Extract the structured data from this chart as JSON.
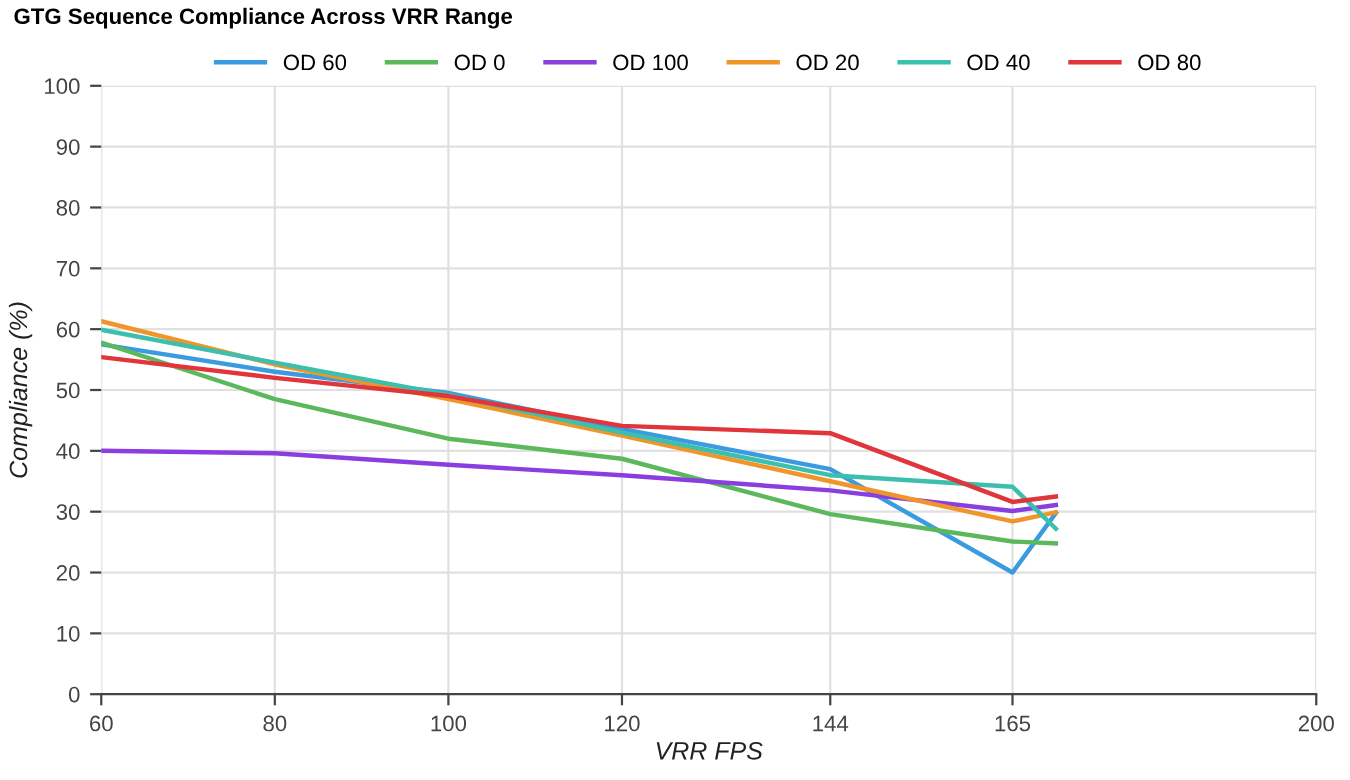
{
  "chart_data": {
    "type": "line",
    "title": "GTG Sequence Compliance Across VRR Range",
    "xlabel": "VRR FPS",
    "ylabel": "Compliance (%)",
    "x": [
      60,
      80,
      100,
      120,
      144,
      165,
      170
    ],
    "series": [
      {
        "name": "OD 60",
        "color": "#3a9be0",
        "values": [
          57.5,
          53,
          49.5,
          43.6,
          37,
          20,
          29.8
        ]
      },
      {
        "name": "OD 0",
        "color": "#5cb85c",
        "values": [
          57.8,
          48.5,
          42,
          38.7,
          29.6,
          25.1,
          24.8
        ]
      },
      {
        "name": "OD 100",
        "color": "#8a3ee0",
        "values": [
          40,
          39.6,
          37.7,
          36,
          33.5,
          30.1,
          31.1
        ]
      },
      {
        "name": "OD 20",
        "color": "#f0952a",
        "values": [
          61.3,
          54.2,
          48.5,
          42.5,
          35,
          28.4,
          29.9
        ]
      },
      {
        "name": "OD 40",
        "color": "#3dbfae",
        "values": [
          59.9,
          54.5,
          49.2,
          43,
          36,
          34.1,
          27.2
        ]
      },
      {
        "name": "OD 80",
        "color": "#e0353a",
        "values": [
          55.4,
          52,
          49,
          44.1,
          42.9,
          31.6,
          32.5
        ]
      }
    ],
    "xlim": [
      60,
      200
    ],
    "xticks": [
      60,
      80,
      100,
      120,
      144,
      165,
      200
    ],
    "ylim": [
      0,
      100
    ],
    "yticks": [
      0,
      10,
      20,
      30,
      40,
      50,
      60,
      70,
      80,
      90,
      100
    ],
    "grid": true,
    "legend": "top",
    "marker": "none",
    "line_style": "solid"
  }
}
